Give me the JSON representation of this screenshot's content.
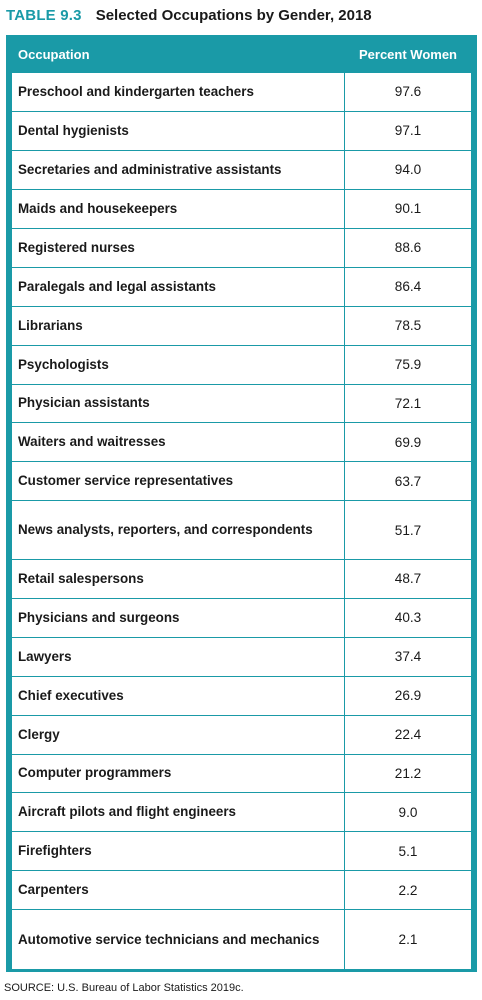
{
  "table_number": "TABLE 9.3",
  "table_title": "Selected Occupations by Gender, 2018",
  "columns": {
    "occupation": "Occupation",
    "percent": "Percent Women"
  },
  "rows": [
    {
      "occupation": "Preschool and kindergarten teachers",
      "percent": "97.6"
    },
    {
      "occupation": "Dental hygienists",
      "percent": "97.1"
    },
    {
      "occupation": "Secretaries and administrative assistants",
      "percent": "94.0"
    },
    {
      "occupation": "Maids and housekeepers",
      "percent": "90.1"
    },
    {
      "occupation": "Registered nurses",
      "percent": "88.6"
    },
    {
      "occupation": "Paralegals and legal assistants",
      "percent": "86.4"
    },
    {
      "occupation": "Librarians",
      "percent": "78.5"
    },
    {
      "occupation": "Psychologists",
      "percent": "75.9"
    },
    {
      "occupation": "Physician assistants",
      "percent": "72.1"
    },
    {
      "occupation": "Waiters and waitresses",
      "percent": "69.9"
    },
    {
      "occupation": "Customer service representatives",
      "percent": "63.7"
    },
    {
      "occupation": "News analysts, reporters, and correspondents",
      "percent": "51.7"
    },
    {
      "occupation": "Retail salespersons",
      "percent": "48.7"
    },
    {
      "occupation": "Physicians and surgeons",
      "percent": "40.3"
    },
    {
      "occupation": "Lawyers",
      "percent": "37.4"
    },
    {
      "occupation": "Chief executives",
      "percent": "26.9"
    },
    {
      "occupation": "Clergy",
      "percent": "22.4"
    },
    {
      "occupation": "Computer programmers",
      "percent": "21.2"
    },
    {
      "occupation": "Aircraft pilots and flight engineers",
      "percent": "9.0"
    },
    {
      "occupation": "Firefighters",
      "percent": "5.1"
    },
    {
      "occupation": "Carpenters",
      "percent": "2.2"
    },
    {
      "occupation": "Automotive service technicians and mechanics",
      "percent": "2.1"
    }
  ],
  "source": "SOURCE: U.S. Bureau of Labor Statistics 2019c.",
  "colors": {
    "accent": "#1a9aa7",
    "text": "#1a1a1a",
    "background": "#ffffff"
  }
}
